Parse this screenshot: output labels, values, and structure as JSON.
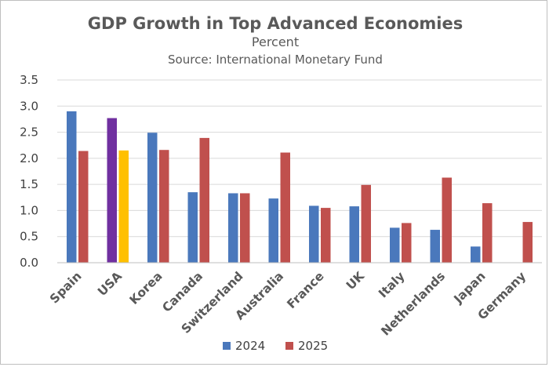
{
  "chart_data": {
    "type": "bar",
    "title": "GDP Growth in Top Advanced Economies",
    "subtitle": "Percent",
    "source": "Source: International Monetary Fund",
    "categories": [
      "Spain",
      "USA",
      "Korea",
      "Canada",
      "Switzerland",
      "Australia",
      "France",
      "UK",
      "Italy",
      "Netherlands",
      "Japan",
      "Germany"
    ],
    "series": [
      {
        "name": "2024",
        "color": "#4a78bc",
        "values": [
          2.9,
          2.77,
          2.49,
          1.35,
          1.33,
          1.23,
          1.09,
          1.08,
          0.67,
          0.63,
          0.31,
          null
        ]
      },
      {
        "name": "2025",
        "color": "#c0504d",
        "values": [
          2.14,
          2.15,
          2.16,
          2.39,
          1.33,
          2.11,
          1.05,
          1.49,
          0.76,
          1.63,
          1.14,
          0.78
        ]
      }
    ],
    "highlight": {
      "category": "USA",
      "colors": {
        "2024": "#7030a0",
        "2025": "#ffc000"
      }
    },
    "ylim": [
      0,
      3.5
    ],
    "yticks": [
      "0.0",
      "0.5",
      "1.0",
      "1.5",
      "2.0",
      "2.5",
      "3.0",
      "3.5"
    ],
    "grid": true,
    "legend_position": "bottom"
  }
}
